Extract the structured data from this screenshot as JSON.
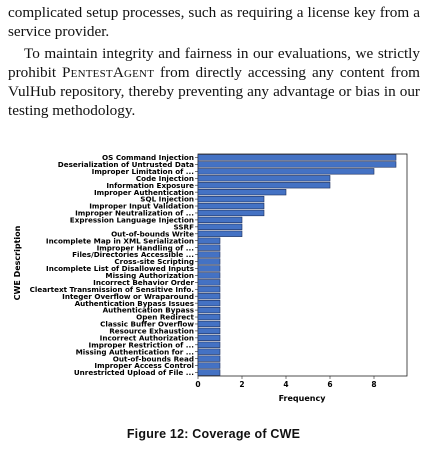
{
  "text": {
    "p1": "complicated setup processes, such as requiring a license key from a service provider.",
    "p2_before": "To maintain integrity and fairness in our evaluations, we strictly prohibit ",
    "p2_name": "PentestAgent",
    "p2_after": " from directly accessing any content from VulHub repository, thereby preventing any advantage or bias in our testing methodology."
  },
  "figure": {
    "caption": "Figure 12: Coverage of CWE"
  },
  "chart_data": {
    "type": "bar",
    "orientation": "horizontal",
    "xlabel": "Frequency",
    "ylabel": "CWE Description",
    "xlim": [
      0,
      9.5
    ],
    "xticks": [
      0,
      2,
      4,
      6,
      8
    ],
    "grid": false,
    "bar_color": "#4472c4",
    "categories": [
      "OS Command Injection",
      "Deserialization of Untrusted Data",
      "Improper Limitation of ...",
      "Code Injection",
      "Information Exposure",
      "Improper Authentication",
      "SQL Injection",
      "Improper Input Validation",
      "Improper Neutralization of ...",
      "Expression Language Injection",
      "SSRF",
      "Out-of-bounds Write",
      "Incomplete Map in XML Serialization",
      "Improper Handling of ...",
      "Files/Directories Accessible ...",
      "Cross-site Scripting",
      "Incomplete List of Disallowed Inputs",
      "Missing Authorization",
      "Incorrect Behavior Order",
      "Cleartext Transmission of Sensitive Info.",
      "Integer Overflow or Wraparound",
      "Authentication Bypass Issues",
      "Authentication Bypass",
      "Open Redirect",
      "Classic Buffer Overflow",
      "Resource Exhaustion",
      "Incorrect Authorization",
      "Improper Restriction of ...",
      "Missing Authentication for ...",
      "Out-of-bounds Read",
      "Improper Access Control",
      "Unrestricted Upload of File ..."
    ],
    "values": [
      9,
      9,
      8,
      6,
      6,
      4,
      3,
      3,
      3,
      2,
      2,
      2,
      1,
      1,
      1,
      1,
      1,
      1,
      1,
      1,
      1,
      1,
      1,
      1,
      1,
      1,
      1,
      1,
      1,
      1,
      1,
      1
    ]
  }
}
